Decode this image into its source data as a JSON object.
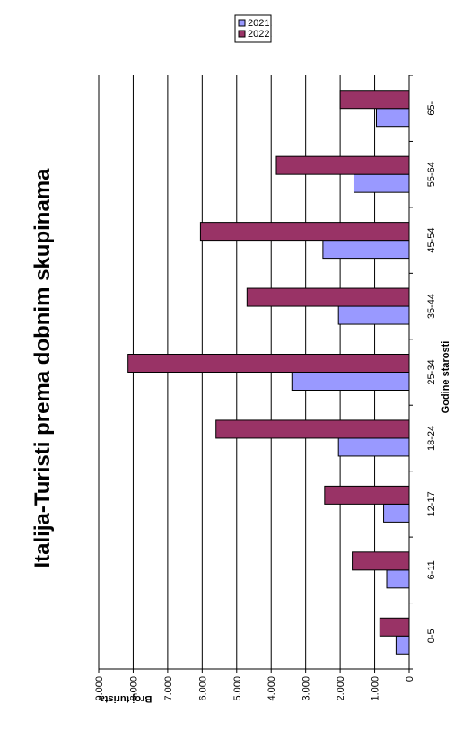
{
  "chart_data": {
    "type": "bar",
    "orientation": "rotated",
    "title": "Italija-Turisti prema dobnim skupinama",
    "xlabel": "Godine starosti",
    "ylabel": "Broj turista",
    "categories": [
      "0-5",
      "6-11",
      "12-17",
      "18-24",
      "25-34",
      "35-44",
      "45-54",
      "55-64",
      "65-"
    ],
    "series": [
      {
        "name": "2021.",
        "color": "#9999ff",
        "values": [
          380,
          650,
          740,
          2050,
          3400,
          2050,
          2500,
          1600,
          950
        ]
      },
      {
        "name": "2022.",
        "color": "#993366",
        "values": [
          850,
          1650,
          2450,
          5600,
          8150,
          4700,
          6050,
          3850,
          2000
        ]
      }
    ],
    "ylim": [
      0,
      9000
    ],
    "yticks": [
      "0",
      "1.000",
      "2.000",
      "3.000",
      "4.000",
      "5.000",
      "6.000",
      "7.000",
      "8.000",
      "9.000"
    ],
    "grid": true,
    "legend": "top-right"
  }
}
